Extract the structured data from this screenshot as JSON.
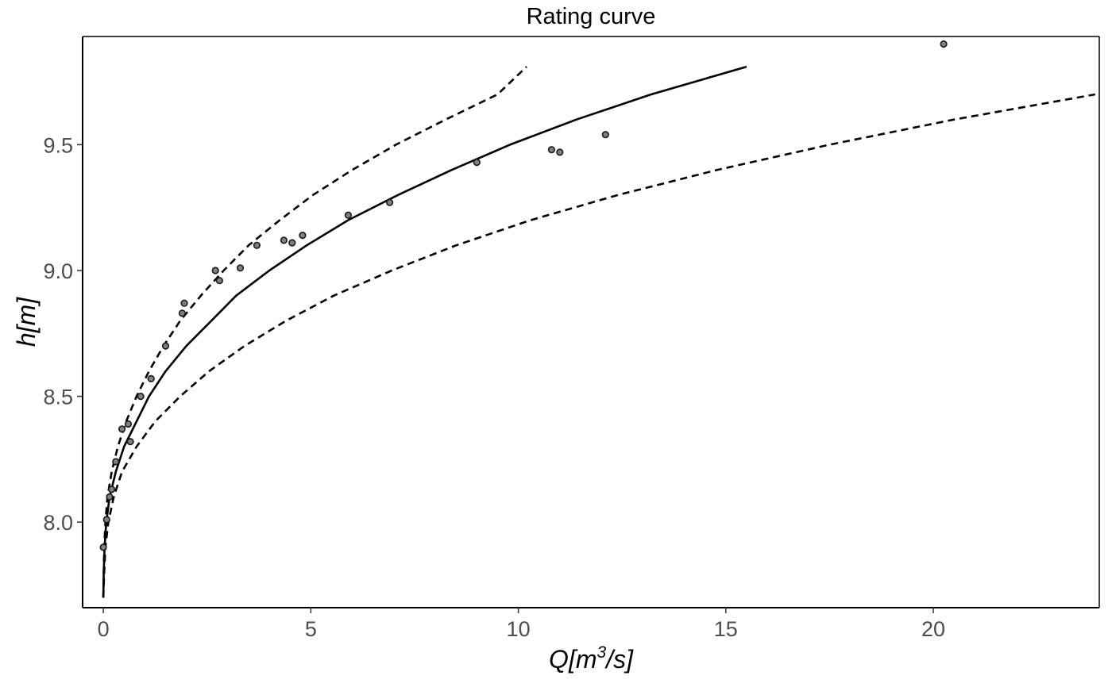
{
  "chart_data": {
    "type": "line",
    "title": "Rating curve",
    "xlabel": {
      "pre": "Q[",
      "unit": "m",
      "exp": "3",
      "post": "/s]"
    },
    "ylabel": "h[m]",
    "xlim": [
      -0.5,
      24.0
    ],
    "ylim": [
      7.66,
      9.93
    ],
    "x_ticks": [
      {
        "value": 0,
        "label": "0"
      },
      {
        "value": 5,
        "label": "5"
      },
      {
        "value": 10,
        "label": "10"
      },
      {
        "value": 15,
        "label": "15"
      },
      {
        "value": 20,
        "label": "20"
      }
    ],
    "y_ticks": [
      {
        "value": 8.0,
        "label": "8.0"
      },
      {
        "value": 8.5,
        "label": "8.5"
      },
      {
        "value": 9.0,
        "label": "9.0"
      },
      {
        "value": 9.5,
        "label": "9.5"
      }
    ],
    "grid": false,
    "legend": "none",
    "series": [
      {
        "style": "solid",
        "points": [
          [
            0.0,
            7.7
          ],
          [
            0.01,
            7.8
          ],
          [
            0.03,
            7.9
          ],
          [
            0.07,
            8.0
          ],
          [
            0.15,
            8.1
          ],
          [
            0.3,
            8.2
          ],
          [
            0.5,
            8.3
          ],
          [
            0.8,
            8.4
          ],
          [
            1.1,
            8.5
          ],
          [
            1.5,
            8.6
          ],
          [
            2.0,
            8.7
          ],
          [
            2.6,
            8.8
          ],
          [
            3.2,
            8.9
          ],
          [
            4.0,
            9.0
          ],
          [
            4.9,
            9.1
          ],
          [
            5.9,
            9.2
          ],
          [
            7.1,
            9.3
          ],
          [
            8.4,
            9.4
          ],
          [
            9.8,
            9.5
          ],
          [
            11.4,
            9.6
          ],
          [
            13.2,
            9.7
          ],
          [
            15.5,
            9.81
          ]
        ]
      },
      {
        "style": "dashed",
        "points": [
          [
            0.0,
            7.7
          ],
          [
            0.01,
            7.8
          ],
          [
            0.02,
            7.9
          ],
          [
            0.05,
            8.0
          ],
          [
            0.1,
            8.1
          ],
          [
            0.2,
            8.2
          ],
          [
            0.35,
            8.3
          ],
          [
            0.55,
            8.4
          ],
          [
            0.8,
            8.5
          ],
          [
            1.1,
            8.6
          ],
          [
            1.45,
            8.7
          ],
          [
            1.85,
            8.8
          ],
          [
            2.35,
            8.9
          ],
          [
            2.9,
            9.0
          ],
          [
            3.5,
            9.1
          ],
          [
            4.25,
            9.2
          ],
          [
            5.05,
            9.3
          ],
          [
            6.0,
            9.4
          ],
          [
            7.05,
            9.5
          ],
          [
            8.25,
            9.6
          ],
          [
            9.5,
            9.7
          ],
          [
            10.2,
            9.81
          ]
        ]
      },
      {
        "style": "dashed",
        "points": [
          [
            0.0,
            7.7
          ],
          [
            0.02,
            7.8
          ],
          [
            0.05,
            7.9
          ],
          [
            0.12,
            8.0
          ],
          [
            0.25,
            8.1
          ],
          [
            0.45,
            8.2
          ],
          [
            0.8,
            8.3
          ],
          [
            1.25,
            8.4
          ],
          [
            1.85,
            8.5
          ],
          [
            2.55,
            8.6
          ],
          [
            3.4,
            8.7
          ],
          [
            4.4,
            8.8
          ],
          [
            5.55,
            8.9
          ],
          [
            6.95,
            9.0
          ],
          [
            8.5,
            9.1
          ],
          [
            10.3,
            9.2
          ],
          [
            12.4,
            9.3
          ],
          [
            14.8,
            9.4
          ],
          [
            17.5,
            9.5
          ],
          [
            20.5,
            9.6
          ],
          [
            23.9,
            9.7
          ]
        ]
      }
    ],
    "observations": [
      [
        0.0,
        7.9
      ],
      [
        0.08,
        8.01
      ],
      [
        0.15,
        8.1
      ],
      [
        0.2,
        8.13
      ],
      [
        0.3,
        8.24
      ],
      [
        0.45,
        8.37
      ],
      [
        0.6,
        8.39
      ],
      [
        0.65,
        8.32
      ],
      [
        0.9,
        8.5
      ],
      [
        1.15,
        8.57
      ],
      [
        1.5,
        8.7
      ],
      [
        1.9,
        8.83
      ],
      [
        1.95,
        8.87
      ],
      [
        2.7,
        9.0
      ],
      [
        2.8,
        8.96
      ],
      [
        3.3,
        9.01
      ],
      [
        3.7,
        9.1
      ],
      [
        4.35,
        9.12
      ],
      [
        4.55,
        9.11
      ],
      [
        4.8,
        9.14
      ],
      [
        5.9,
        9.22
      ],
      [
        6.9,
        9.27
      ],
      [
        9.0,
        9.43
      ],
      [
        10.8,
        9.48
      ],
      [
        11.0,
        9.47
      ],
      [
        12.1,
        9.54
      ],
      [
        20.25,
        9.9
      ]
    ],
    "colors": {
      "line": "#000000",
      "marker_fill": "#808080",
      "marker_stroke": "#1a1a1a",
      "tick_label": "#4d4d4d"
    }
  }
}
